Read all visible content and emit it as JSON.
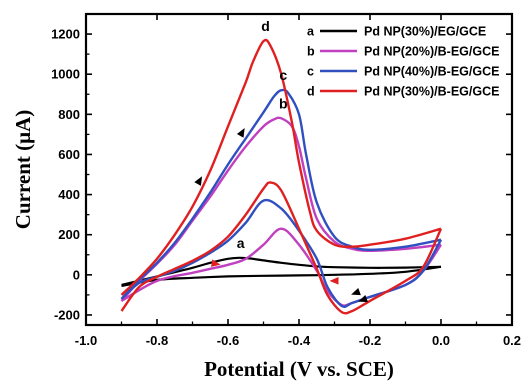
{
  "chart_data": {
    "type": "line",
    "title": "",
    "xlabel": "Potential (V vs. SCE)",
    "ylabel": "Current (μA)",
    "xlim": [
      -1.0,
      0.2
    ],
    "ylim": [
      -250,
      1300
    ],
    "xticks": [
      -1.0,
      -0.8,
      -0.6,
      -0.4,
      -0.2,
      0.0,
      0.2
    ],
    "xtick_labels": [
      "-1.0",
      "-0.8",
      "-0.6",
      "-0.4",
      "-0.2",
      "0.0",
      "0.2"
    ],
    "yticks": [
      -200,
      0,
      200,
      400,
      600,
      800,
      1000,
      1200
    ],
    "ytick_labels": [
      "-200",
      "0",
      "200",
      "400",
      "600",
      "800",
      "1000",
      "1200"
    ],
    "legend_position": "top-right",
    "series": [
      {
        "name": "Pd NP(30%)/EG/GCE",
        "letter": "a",
        "color": "#000000",
        "forward": {
          "x": [
            -0.9,
            -0.8,
            -0.7,
            -0.65,
            -0.6,
            -0.57,
            -0.54,
            -0.5,
            -0.45,
            -0.4,
            -0.35,
            -0.3,
            -0.2,
            -0.1,
            0.0
          ],
          "y": [
            -50,
            -8,
            35,
            60,
            80,
            85,
            82,
            72,
            60,
            50,
            42,
            38,
            35,
            36,
            40
          ]
        },
        "backward": {
          "x": [
            0.0,
            -0.1,
            -0.2,
            -0.3,
            -0.4,
            -0.5,
            -0.6,
            -0.7,
            -0.8,
            -0.9
          ],
          "y": [
            40,
            15,
            5,
            0,
            -3,
            -5,
            -8,
            -15,
            -25,
            -55
          ]
        }
      },
      {
        "name": "Pd NP(20%)/B-EG/GCE",
        "letter": "b",
        "color": "#c040c0",
        "forward": {
          "x": [
            -0.9,
            -0.85,
            -0.8,
            -0.75,
            -0.7,
            -0.65,
            -0.6,
            -0.55,
            -0.5,
            -0.47,
            -0.45,
            -0.42,
            -0.4,
            -0.38,
            -0.35,
            -0.3,
            -0.25,
            -0.2,
            -0.1,
            0.0
          ],
          "y": [
            -130,
            -30,
            55,
            150,
            270,
            390,
            520,
            640,
            740,
            775,
            780,
            740,
            640,
            480,
            280,
            165,
            130,
            120,
            130,
            150
          ]
        },
        "backward": {
          "x": [
            0.0,
            -0.05,
            -0.1,
            -0.2,
            -0.25,
            -0.28,
            -0.32,
            -0.35,
            -0.4,
            -0.45,
            -0.5,
            -0.55,
            -0.6,
            -0.65,
            -0.7,
            -0.8,
            -0.9
          ],
          "y": [
            150,
            20,
            -50,
            -110,
            -140,
            -150,
            -80,
            20,
            150,
            230,
            150,
            80,
            50,
            30,
            10,
            -30,
            -130
          ]
        }
      },
      {
        "name": "Pd NP(40%)/B-EG/GCE",
        "letter": "c",
        "color": "#3050c0",
        "forward": {
          "x": [
            -0.9,
            -0.85,
            -0.8,
            -0.75,
            -0.7,
            -0.65,
            -0.6,
            -0.55,
            -0.5,
            -0.47,
            -0.45,
            -0.43,
            -0.4,
            -0.38,
            -0.35,
            -0.3,
            -0.25,
            -0.2,
            -0.1,
            0.0
          ],
          "y": [
            -120,
            -25,
            60,
            160,
            280,
            410,
            550,
            680,
            810,
            890,
            920,
            905,
            800,
            600,
            360,
            190,
            140,
            125,
            140,
            175
          ]
        },
        "backward": {
          "x": [
            0.0,
            -0.05,
            -0.1,
            -0.2,
            -0.25,
            -0.28,
            -0.32,
            -0.35,
            -0.4,
            -0.45,
            -0.5,
            -0.55,
            -0.6,
            -0.65,
            -0.7,
            -0.75,
            -0.8,
            -0.85,
            -0.9
          ],
          "y": [
            175,
            20,
            -50,
            -110,
            -140,
            -155,
            -60,
            80,
            220,
            330,
            370,
            260,
            170,
            110,
            60,
            20,
            -10,
            -40,
            -120
          ]
        }
      },
      {
        "name": "Pd NP(30%)/B-EG/GCE",
        "letter": "d",
        "color": "#e02020",
        "forward": {
          "x": [
            -0.9,
            -0.85,
            -0.8,
            -0.75,
            -0.7,
            -0.65,
            -0.6,
            -0.55,
            -0.53,
            -0.5,
            -0.48,
            -0.45,
            -0.42,
            -0.4,
            -0.37,
            -0.35,
            -0.3,
            -0.25,
            -0.2,
            -0.1,
            0.0
          ],
          "y": [
            -100,
            -15,
            80,
            200,
            340,
            520,
            740,
            960,
            1060,
            1165,
            1140,
            1000,
            760,
            560,
            320,
            220,
            150,
            140,
            150,
            180,
            230
          ]
        },
        "backward": {
          "x": [
            0.0,
            -0.05,
            -0.1,
            -0.2,
            -0.25,
            -0.28,
            -0.32,
            -0.35,
            -0.4,
            -0.45,
            -0.48,
            -0.5,
            -0.55,
            -0.6,
            -0.65,
            -0.7,
            -0.75,
            -0.8,
            -0.85,
            -0.9
          ],
          "y": [
            230,
            40,
            -30,
            -130,
            -180,
            -185,
            -100,
            30,
            230,
            420,
            460,
            430,
            300,
            190,
            120,
            70,
            30,
            -10,
            -60,
            -180
          ]
        }
      }
    ]
  }
}
